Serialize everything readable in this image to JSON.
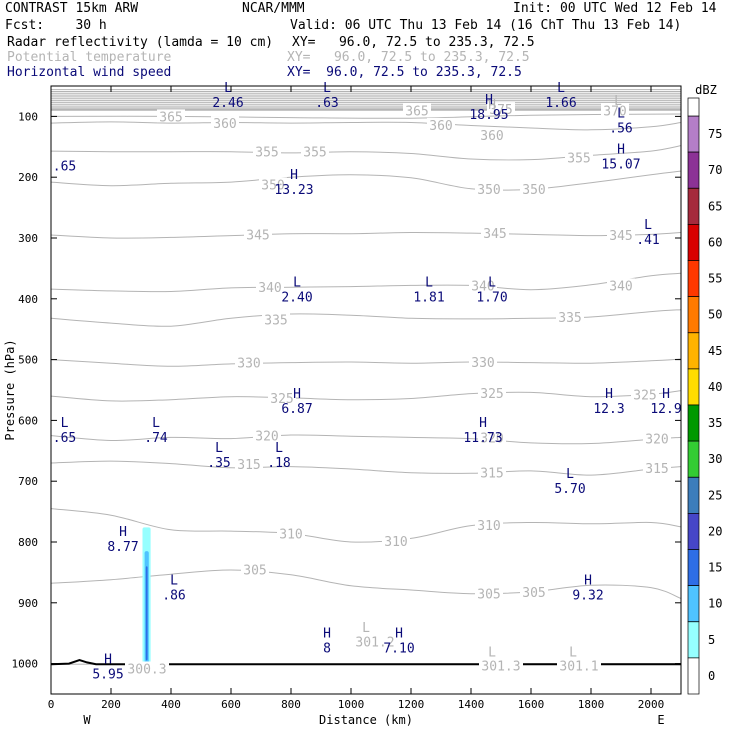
{
  "header": {
    "model": "CONTRAST 15km ARW",
    "org": "NCAR/MMM",
    "init": "Init: 00 UTC Wed 12 Feb 14",
    "fcst": "Fcst:    30 h",
    "valid": "Valid: 06 UTC Thu 13 Feb 14 (16 ChT Thu 13 Feb 14)",
    "fields": [
      {
        "name": "Radar reflectivity (lamda = 10 cm)",
        "xy": "XY=   96.0, 72.5 to 235.3, 72.5",
        "color": "#000000"
      },
      {
        "name": "Potential temperature",
        "xy": "XY=   96.0, 72.5 to 235.3, 72.5",
        "color": "#b4b4b4"
      },
      {
        "name": "Horizontal wind speed",
        "xy": "XY=  96.0, 72.5 to 235.3, 72.5",
        "color": "#0a0a78"
      }
    ]
  },
  "chart_data": {
    "type": "cross-section",
    "xlabel": "Distance (km)",
    "ylabel": "Pressure (hPa)",
    "xlim": [
      0,
      2100
    ],
    "ylim": [
      1050,
      50
    ],
    "x_ticks": [
      0,
      200,
      400,
      600,
      800,
      1000,
      1200,
      1400,
      1600,
      1800,
      2000
    ],
    "y_ticks": [
      100,
      200,
      300,
      400,
      500,
      600,
      700,
      800,
      900,
      1000
    ],
    "end_labels": {
      "left": "W",
      "right": "E"
    },
    "theta_isentropes": [
      {
        "value": "300.3",
        "points": [
          [
            0,
            1001
          ],
          [
            2100,
            1000
          ]
        ],
        "label_at": [
          320,
          1008
        ]
      },
      {
        "value": "305",
        "points": [
          [
            0,
            868
          ],
          [
            200,
            862
          ],
          [
            400,
            853
          ],
          [
            600,
            846
          ],
          [
            800,
            854
          ],
          [
            1000,
            872
          ],
          [
            1200,
            879
          ],
          [
            1400,
            885
          ],
          [
            1600,
            882
          ],
          [
            1800,
            871
          ],
          [
            2000,
            875
          ],
          [
            2100,
            893
          ]
        ],
        "label_at": [
          680,
          845
        ]
      },
      {
        "value": "310",
        "points": [
          [
            0,
            745
          ],
          [
            200,
            756
          ],
          [
            400,
            780
          ],
          [
            600,
            782
          ],
          [
            800,
            786
          ],
          [
            1000,
            800
          ],
          [
            1200,
            794
          ],
          [
            1400,
            773
          ],
          [
            1600,
            768
          ],
          [
            1800,
            770
          ],
          [
            2000,
            768
          ],
          [
            2100,
            775
          ]
        ],
        "label_at": [
          1150,
          798
        ]
      },
      {
        "value": "315",
        "points": [
          [
            0,
            670
          ],
          [
            200,
            667
          ],
          [
            400,
            671
          ],
          [
            600,
            678
          ],
          [
            800,
            676
          ],
          [
            1000,
            680
          ],
          [
            1200,
            686
          ],
          [
            1400,
            687
          ],
          [
            1600,
            683
          ],
          [
            1800,
            690
          ],
          [
            2000,
            680
          ],
          [
            2100,
            676
          ]
        ],
        "label_at": [
          660,
          672
        ]
      },
      {
        "value": "320",
        "points": [
          [
            0,
            625
          ],
          [
            200,
            633
          ],
          [
            400,
            628
          ],
          [
            600,
            630
          ],
          [
            800,
            624
          ],
          [
            1000,
            626
          ],
          [
            1200,
            628
          ],
          [
            1400,
            630
          ],
          [
            1600,
            637
          ],
          [
            1800,
            638
          ],
          [
            2000,
            631
          ],
          [
            2100,
            628
          ]
        ],
        "label_at": [
          720,
          625
        ]
      },
      {
        "value": "325",
        "points": [
          [
            0,
            560
          ],
          [
            200,
            568
          ],
          [
            400,
            566
          ],
          [
            600,
            561
          ],
          [
            800,
            563
          ],
          [
            1000,
            566
          ],
          [
            1200,
            564
          ],
          [
            1400,
            556
          ],
          [
            1600,
            554
          ],
          [
            1800,
            561
          ],
          [
            2000,
            557
          ],
          [
            2100,
            551
          ]
        ],
        "label_at": [
          1470,
          555
        ]
      },
      {
        "value": "330",
        "points": [
          [
            0,
            500
          ],
          [
            200,
            506
          ],
          [
            400,
            511
          ],
          [
            600,
            507
          ],
          [
            800,
            505
          ],
          [
            1000,
            504
          ],
          [
            1200,
            506
          ],
          [
            1400,
            504
          ],
          [
            1600,
            505
          ],
          [
            1800,
            506
          ],
          [
            2000,
            502
          ],
          [
            2100,
            499
          ]
        ],
        "label_at": [
          660,
          505
        ]
      },
      {
        "value": "335",
        "points": [
          [
            0,
            432
          ],
          [
            200,
            440
          ],
          [
            400,
            445
          ],
          [
            600,
            432
          ],
          [
            800,
            425
          ],
          [
            1000,
            427
          ],
          [
            1200,
            432
          ],
          [
            1400,
            433
          ],
          [
            1600,
            432
          ],
          [
            1800,
            430
          ],
          [
            2000,
            421
          ],
          [
            2100,
            418
          ]
        ],
        "label_at": [
          1730,
          430
        ]
      },
      {
        "value": "340",
        "points": [
          [
            0,
            384
          ],
          [
            200,
            387
          ],
          [
            400,
            388
          ],
          [
            600,
            382
          ],
          [
            800,
            381
          ],
          [
            1000,
            380
          ],
          [
            1200,
            378
          ],
          [
            1400,
            378
          ],
          [
            1600,
            385
          ],
          [
            1800,
            377
          ],
          [
            2000,
            362
          ],
          [
            2100,
            358
          ]
        ],
        "label_at": [
          1440,
          378
        ]
      },
      {
        "value": "345",
        "points": [
          [
            0,
            295
          ],
          [
            200,
            300
          ],
          [
            400,
            299
          ],
          [
            600,
            296
          ],
          [
            800,
            293
          ],
          [
            1000,
            293
          ],
          [
            1200,
            291
          ],
          [
            1400,
            292
          ],
          [
            1600,
            294
          ],
          [
            1800,
            296
          ],
          [
            2000,
            294
          ],
          [
            2100,
            291
          ]
        ],
        "label_at": [
          1480,
          292
        ]
      },
      {
        "value": "350",
        "points": [
          [
            0,
            208
          ],
          [
            200,
            214
          ],
          [
            400,
            210
          ],
          [
            600,
            208
          ],
          [
            800,
            200
          ],
          [
            1000,
            196
          ],
          [
            1200,
            201
          ],
          [
            1400,
            219
          ],
          [
            1600,
            220
          ],
          [
            1800,
            209
          ],
          [
            2000,
            196
          ],
          [
            2100,
            190
          ]
        ],
        "label_at": [
          1460,
          219
        ]
      },
      {
        "value": "355",
        "points": [
          [
            0,
            157
          ],
          [
            200,
            158
          ],
          [
            400,
            158
          ],
          [
            600,
            158
          ],
          [
            800,
            160
          ],
          [
            1000,
            158
          ],
          [
            1200,
            161
          ],
          [
            1400,
            170
          ],
          [
            1600,
            171
          ],
          [
            1800,
            164
          ],
          [
            2000,
            157
          ],
          [
            2100,
            148
          ]
        ],
        "label_at": [
          880,
          158
        ]
      },
      {
        "value": "360",
        "points": [
          [
            0,
            111
          ],
          [
            200,
            109
          ],
          [
            400,
            111
          ],
          [
            600,
            110
          ],
          [
            800,
            111
          ],
          [
            1000,
            110
          ],
          [
            1200,
            110
          ],
          [
            1400,
            115
          ],
          [
            1600,
            119
          ],
          [
            1800,
            122
          ],
          [
            2000,
            117
          ],
          [
            2100,
            110
          ]
        ],
        "label_at": [
          1470,
          131
        ]
      },
      {
        "value": "365",
        "points": [
          [
            0,
            100
          ],
          [
            400,
            100
          ],
          [
            800,
            102
          ],
          [
            1200,
            103
          ],
          [
            1600,
            98
          ],
          [
            2100,
            96
          ]
        ],
        "label_at": [
          400,
          100
        ]
      },
      {
        "value": "370",
        "points": [
          [
            0,
            90
          ],
          [
            2100,
            90
          ]
        ],
        "label_at": [
          1880,
          90
        ]
      },
      {
        "value": "375",
        "points": [
          [
            0,
            88
          ],
          [
            2100,
            88
          ]
        ],
        "label_at": [
          1500,
          88
        ]
      }
    ],
    "theta_extra_labels": [
      {
        "text": "360",
        "x": 580,
        "y": 111
      },
      {
        "text": "355",
        "x": 720,
        "y": 158
      },
      {
        "text": "350",
        "x": 740,
        "y": 212
      },
      {
        "text": "345",
        "x": 690,
        "y": 294
      },
      {
        "text": "340",
        "x": 730,
        "y": 381
      },
      {
        "text": "335",
        "x": 750,
        "y": 434
      },
      {
        "text": "330",
        "x": 1440,
        "y": 504
      },
      {
        "text": "325",
        "x": 770,
        "y": 563
      },
      {
        "text": "320",
        "x": 1470,
        "y": 628
      },
      {
        "text": "315",
        "x": 1470,
        "y": 686
      },
      {
        "text": "310",
        "x": 1460,
        "y": 772
      },
      {
        "text": "305",
        "x": 1460,
        "y": 885
      },
      {
        "text": "305",
        "x": 1610,
        "y": 882
      },
      {
        "text": "310",
        "x": 800,
        "y": 786
      },
      {
        "text": "315",
        "x": 2020,
        "y": 678
      },
      {
        "text": "320",
        "x": 2020,
        "y": 630
      },
      {
        "text": "325",
        "x": 1980,
        "y": 557
      },
      {
        "text": "340",
        "x": 1900,
        "y": 378
      },
      {
        "text": "345",
        "x": 1900,
        "y": 295
      },
      {
        "text": "350",
        "x": 1610,
        "y": 219
      },
      {
        "text": "355",
        "x": 1760,
        "y": 168
      },
      {
        "text": "360",
        "x": 1300,
        "y": 114
      },
      {
        "text": "365",
        "x": 1220,
        "y": 90
      },
      {
        "text": "301.2",
        "x": 1080,
        "y": 964
      },
      {
        "text": "301.3",
        "x": 1500,
        "y": 1003
      },
      {
        "text": "301.1",
        "x": 1760,
        "y": 1003
      }
    ],
    "theta_extremes": [
      {
        "letter": "L",
        "x": 1050,
        "y": 940
      },
      {
        "letter": "L",
        "x": 1470,
        "y": 980
      },
      {
        "letter": "L",
        "x": 1740,
        "y": 980
      },
      {
        "letter": "L",
        "x": 1890,
        "y": 73
      },
      {
        "letter": "H",
        "x": 1470,
        "y": 80
      }
    ],
    "wind_speed_extremes": [
      {
        "letter": "L",
        "value": "2.46",
        "x": 590,
        "y": 60
      },
      {
        "letter": "L",
        "value": ".63",
        "x": 920,
        "y": 60
      },
      {
        "letter": "H",
        "value": "18.95",
        "x": 1460,
        "y": 80
      },
      {
        "letter": "L",
        "value": "1.66",
        "x": 1700,
        "y": 60
      },
      {
        "letter": "L",
        "value": ".56",
        "x": 1900,
        "y": 102
      },
      {
        "letter": ".",
        "value": ".65",
        "x": 45,
        "y": 164
      },
      {
        "letter": "H",
        "value": "15.07",
        "x": 1900,
        "y": 161
      },
      {
        "letter": "H",
        "value": "13.23",
        "x": 810,
        "y": 203
      },
      {
        "letter": "L",
        "value": ".41",
        "x": 1990,
        "y": 285
      },
      {
        "letter": "L",
        "value": "2.40",
        "x": 820,
        "y": 380
      },
      {
        "letter": "L",
        "value": "1.81",
        "x": 1260,
        "y": 380
      },
      {
        "letter": "L",
        "value": "1.70",
        "x": 1470,
        "y": 380
      },
      {
        "letter": "H",
        "value": "6.87",
        "x": 820,
        "y": 563
      },
      {
        "letter": "H",
        "value": "12.3",
        "x": 1860,
        "y": 563
      },
      {
        "letter": "H",
        "value": "12.9",
        "x": 2050,
        "y": 563
      },
      {
        "letter": "L",
        "value": ".65",
        "x": 45,
        "y": 611
      },
      {
        "letter": "L",
        "value": ".74",
        "x": 350,
        "y": 611
      },
      {
        "letter": "H",
        "value": "11.73",
        "x": 1440,
        "y": 611
      },
      {
        "letter": "L",
        "value": ".35",
        "x": 560,
        "y": 652
      },
      {
        "letter": "L",
        "value": ".18",
        "x": 760,
        "y": 652
      },
      {
        "letter": "L",
        "value": "5.70",
        "x": 1730,
        "y": 695
      },
      {
        "letter": "H",
        "value": "8.77",
        "x": 240,
        "y": 790
      },
      {
        "letter": "L",
        "value": ".86",
        "x": 410,
        "y": 870
      },
      {
        "letter": "H",
        "value": "9.32",
        "x": 1790,
        "y": 870
      },
      {
        "letter": "H",
        "value": "8",
        "x": 920,
        "y": 957
      },
      {
        "letter": "H",
        "value": "7.10",
        "x": 1160,
        "y": 957
      },
      {
        "letter": "H",
        "value": "5.95",
        "x": 190,
        "y": 1000
      }
    ],
    "reflectivity": [
      {
        "dbz_range": "5-10",
        "x0": 305,
        "x1": 332,
        "p_top": 776,
        "p_bot": 1003
      },
      {
        "dbz_range": "10-15",
        "x0": 312,
        "x1": 326,
        "p_top": 815,
        "p_bot": 1001
      },
      {
        "dbz_range": "15-20",
        "x0": 316,
        "x1": 322,
        "p_top": 840,
        "p_bot": 995
      }
    ],
    "terrain": [
      [
        0,
        1001
      ],
      [
        60,
        1000
      ],
      [
        95,
        994
      ],
      [
        120,
        998
      ],
      [
        150,
        1001
      ],
      [
        2100,
        1001
      ]
    ],
    "colorbar": {
      "title": "dBZ",
      "levels": [
        "0",
        "5",
        "10",
        "15",
        "20",
        "25",
        "30",
        "35",
        "40",
        "45",
        "50",
        "55",
        "60",
        "65",
        "70",
        "75"
      ],
      "colors": [
        "#ffffff",
        "#96ffff",
        "#4fc3ff",
        "#2e6ee6",
        "#4646c8",
        "#3c7dbb",
        "#33cc33",
        "#009900",
        "#ffdc00",
        "#ffb300",
        "#ff7a00",
        "#ff3800",
        "#d80000",
        "#a52a3c",
        "#8c3296",
        "#b47ec8"
      ]
    }
  }
}
